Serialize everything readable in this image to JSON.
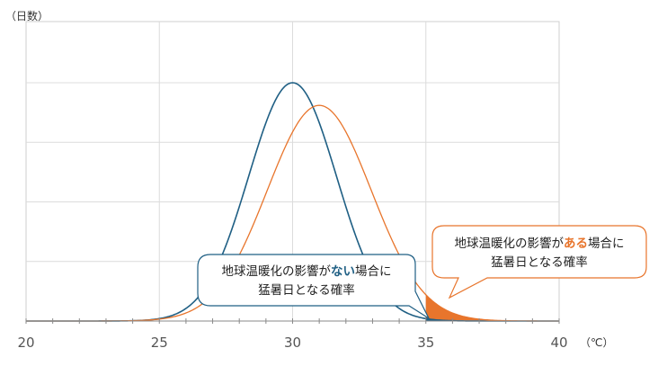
{
  "chart_data": {
    "type": "area",
    "ylabel": "（日数）",
    "xunit": "（℃）",
    "xlim": [
      20,
      40
    ],
    "x_ticks": [
      20,
      25,
      30,
      35,
      40
    ],
    "grid": true,
    "threshold": 35,
    "series": [
      {
        "mean": 30,
        "sd": 1.65,
        "peak": 1.0,
        "color": "#1f5f84"
      },
      {
        "mean": 31,
        "sd": 1.95,
        "peak": 0.905,
        "color": "#e8752c"
      }
    ],
    "annotations": [
      {
        "pre": "地球温暖化の影響が",
        "emph": "ない",
        "post": "場合に",
        "line2": "猛暑日となる確率",
        "color": "#1f5f84"
      },
      {
        "pre": "地球温暖化の影響が",
        "emph": "ある",
        "post": "場合に",
        "line2": "猛暑日となる確率",
        "color": "#e8752c"
      }
    ]
  }
}
